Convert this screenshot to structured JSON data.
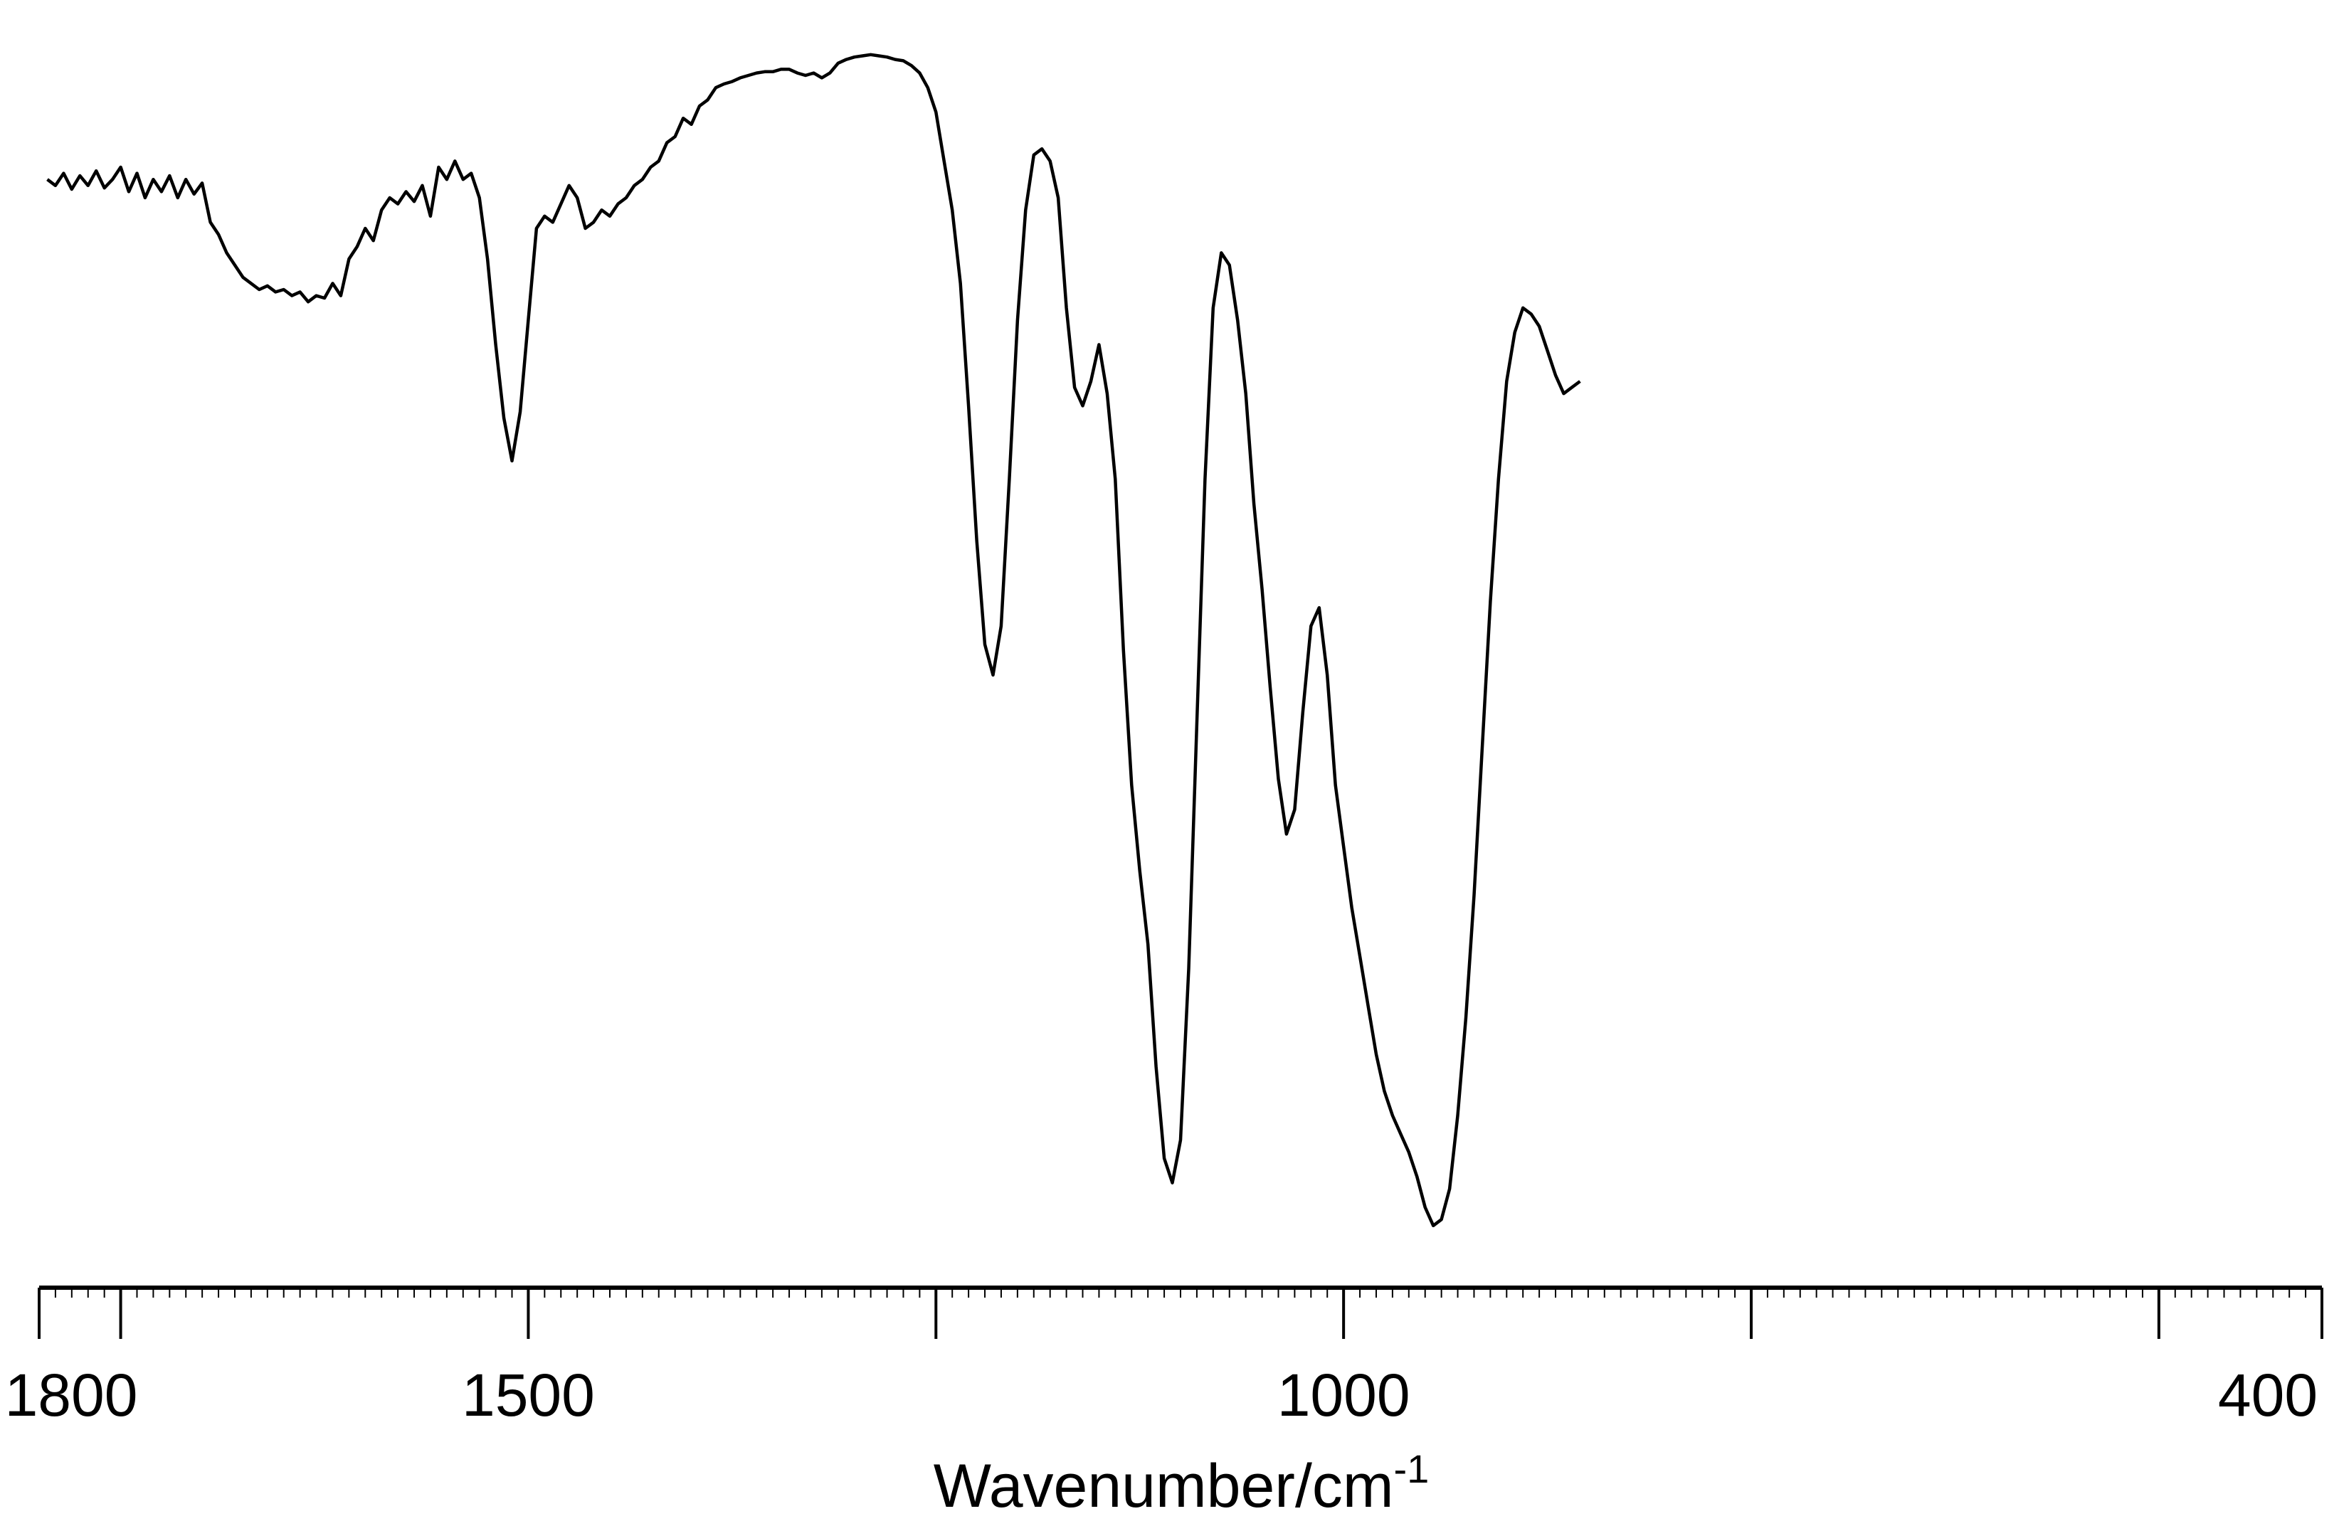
{
  "chart_data": {
    "type": "line",
    "xlabel_main": "Wavenumber/cm",
    "xlabel_sup": "-1",
    "ylabel": "",
    "xlim": [
      1800,
      400
    ],
    "xlim_note": "reversed",
    "ylim": [
      0,
      100
    ],
    "grid": false,
    "x_ticks_labeled": [
      1800,
      1500,
      1000,
      400
    ],
    "x_tick_labels": [
      "1800",
      "1500",
      "1000",
      "400"
    ],
    "x_ticks_major": [
      1800,
      1750,
      1500,
      1250,
      1000,
      750,
      500,
      400
    ],
    "x_ticks_minor_step": 10,
    "colors": {
      "line": "#000000",
      "axis": "#000000",
      "background": "#ffffff"
    },
    "series": [
      {
        "values": [
          [
            1795,
            86.5
          ],
          [
            1790,
            86
          ],
          [
            1785,
            87
          ],
          [
            1780,
            85.7
          ],
          [
            1775,
            86.8
          ],
          [
            1770,
            86
          ],
          [
            1765,
            87.2
          ],
          [
            1760,
            85.8
          ],
          [
            1755,
            86.5
          ],
          [
            1750,
            87.5
          ],
          [
            1745,
            85.5
          ],
          [
            1740,
            87
          ],
          [
            1735,
            85
          ],
          [
            1730,
            86.5
          ],
          [
            1725,
            85.5
          ],
          [
            1720,
            86.8
          ],
          [
            1715,
            85
          ],
          [
            1710,
            86.5
          ],
          [
            1705,
            85.3
          ],
          [
            1700,
            86.2
          ],
          [
            1695,
            83
          ],
          [
            1690,
            82
          ],
          [
            1685,
            80.5
          ],
          [
            1680,
            79.5
          ],
          [
            1675,
            78.5
          ],
          [
            1670,
            78
          ],
          [
            1665,
            77.5
          ],
          [
            1660,
            77.8
          ],
          [
            1655,
            77.3
          ],
          [
            1650,
            77.5
          ],
          [
            1645,
            77
          ],
          [
            1640,
            77.3
          ],
          [
            1635,
            76.5
          ],
          [
            1630,
            77
          ],
          [
            1625,
            76.8
          ],
          [
            1620,
            78
          ],
          [
            1615,
            77
          ],
          [
            1610,
            80
          ],
          [
            1605,
            81
          ],
          [
            1600,
            82.5
          ],
          [
            1595,
            81.5
          ],
          [
            1590,
            84
          ],
          [
            1585,
            85
          ],
          [
            1580,
            84.5
          ],
          [
            1575,
            85.5
          ],
          [
            1570,
            84.7
          ],
          [
            1565,
            86
          ],
          [
            1560,
            83.5
          ],
          [
            1555,
            87.5
          ],
          [
            1550,
            86.5
          ],
          [
            1545,
            88
          ],
          [
            1540,
            86.5
          ],
          [
            1535,
            87
          ],
          [
            1530,
            85
          ],
          [
            1525,
            80
          ],
          [
            1520,
            73
          ],
          [
            1515,
            67
          ],
          [
            1510,
            63.5
          ],
          [
            1505,
            67.5
          ],
          [
            1500,
            75
          ],
          [
            1495,
            82.5
          ],
          [
            1490,
            83.5
          ],
          [
            1485,
            83
          ],
          [
            1480,
            84.5
          ],
          [
            1475,
            86
          ],
          [
            1470,
            85
          ],
          [
            1465,
            82.5
          ],
          [
            1460,
            83
          ],
          [
            1455,
            84
          ],
          [
            1450,
            83.5
          ],
          [
            1445,
            84.5
          ],
          [
            1440,
            85
          ],
          [
            1435,
            86
          ],
          [
            1430,
            86.5
          ],
          [
            1425,
            87.5
          ],
          [
            1420,
            88
          ],
          [
            1415,
            89.5
          ],
          [
            1410,
            90
          ],
          [
            1405,
            91.5
          ],
          [
            1400,
            91
          ],
          [
            1395,
            92.5
          ],
          [
            1390,
            93
          ],
          [
            1385,
            94
          ],
          [
            1380,
            94.3
          ],
          [
            1375,
            94.5
          ],
          [
            1370,
            94.8
          ],
          [
            1365,
            95
          ],
          [
            1360,
            95.2
          ],
          [
            1355,
            95.3
          ],
          [
            1350,
            95.3
          ],
          [
            1345,
            95.5
          ],
          [
            1340,
            95.5
          ],
          [
            1335,
            95.2
          ],
          [
            1330,
            95
          ],
          [
            1325,
            95.2
          ],
          [
            1320,
            94.8
          ],
          [
            1315,
            95.2
          ],
          [
            1310,
            96
          ],
          [
            1305,
            96.3
          ],
          [
            1300,
            96.5
          ],
          [
            1295,
            96.6
          ],
          [
            1290,
            96.7
          ],
          [
            1285,
            96.6
          ],
          [
            1280,
            96.5
          ],
          [
            1275,
            96.3
          ],
          [
            1270,
            96.2
          ],
          [
            1265,
            95.8
          ],
          [
            1260,
            95.2
          ],
          [
            1255,
            94
          ],
          [
            1250,
            92
          ],
          [
            1245,
            88
          ],
          [
            1240,
            84
          ],
          [
            1235,
            78
          ],
          [
            1230,
            68
          ],
          [
            1225,
            57
          ],
          [
            1220,
            48.5
          ],
          [
            1215,
            46
          ],
          [
            1210,
            50
          ],
          [
            1205,
            62
          ],
          [
            1200,
            75
          ],
          [
            1195,
            84
          ],
          [
            1190,
            88.5
          ],
          [
            1185,
            89
          ],
          [
            1180,
            88
          ],
          [
            1175,
            85
          ],
          [
            1170,
            76
          ],
          [
            1165,
            69.5
          ],
          [
            1160,
            68
          ],
          [
            1155,
            70
          ],
          [
            1150,
            73
          ],
          [
            1145,
            69
          ],
          [
            1140,
            62
          ],
          [
            1135,
            48
          ],
          [
            1130,
            37
          ],
          [
            1125,
            30
          ],
          [
            1120,
            24
          ],
          [
            1115,
            14
          ],
          [
            1110,
            6.5
          ],
          [
            1105,
            4.5
          ],
          [
            1100,
            8
          ],
          [
            1095,
            22
          ],
          [
            1090,
            42
          ],
          [
            1085,
            62
          ],
          [
            1080,
            76
          ],
          [
            1075,
            80.5
          ],
          [
            1070,
            79.5
          ],
          [
            1065,
            75
          ],
          [
            1060,
            69
          ],
          [
            1055,
            60
          ],
          [
            1050,
            53
          ],
          [
            1045,
            45
          ],
          [
            1040,
            37.5
          ],
          [
            1035,
            33
          ],
          [
            1030,
            35
          ],
          [
            1025,
            43
          ],
          [
            1020,
            50
          ],
          [
            1015,
            51.5
          ],
          [
            1010,
            46
          ],
          [
            1005,
            37
          ],
          [
            1000,
            32
          ],
          [
            995,
            27
          ],
          [
            990,
            23
          ],
          [
            985,
            19
          ],
          [
            980,
            15
          ],
          [
            975,
            12
          ],
          [
            970,
            10
          ],
          [
            965,
            8.5
          ],
          [
            960,
            7
          ],
          [
            955,
            5
          ],
          [
            950,
            2.5
          ],
          [
            945,
            1
          ],
          [
            940,
            1.5
          ],
          [
            935,
            4
          ],
          [
            930,
            10
          ],
          [
            925,
            18
          ],
          [
            920,
            28
          ],
          [
            915,
            40
          ],
          [
            910,
            52
          ],
          [
            905,
            62
          ],
          [
            900,
            70
          ],
          [
            895,
            74
          ],
          [
            890,
            76
          ],
          [
            885,
            75.5
          ],
          [
            880,
            74.5
          ],
          [
            875,
            72.5
          ],
          [
            870,
            70.5
          ],
          [
            865,
            69
          ],
          [
            860,
            69.5
          ],
          [
            855,
            70
          ]
        ]
      }
    ]
  }
}
